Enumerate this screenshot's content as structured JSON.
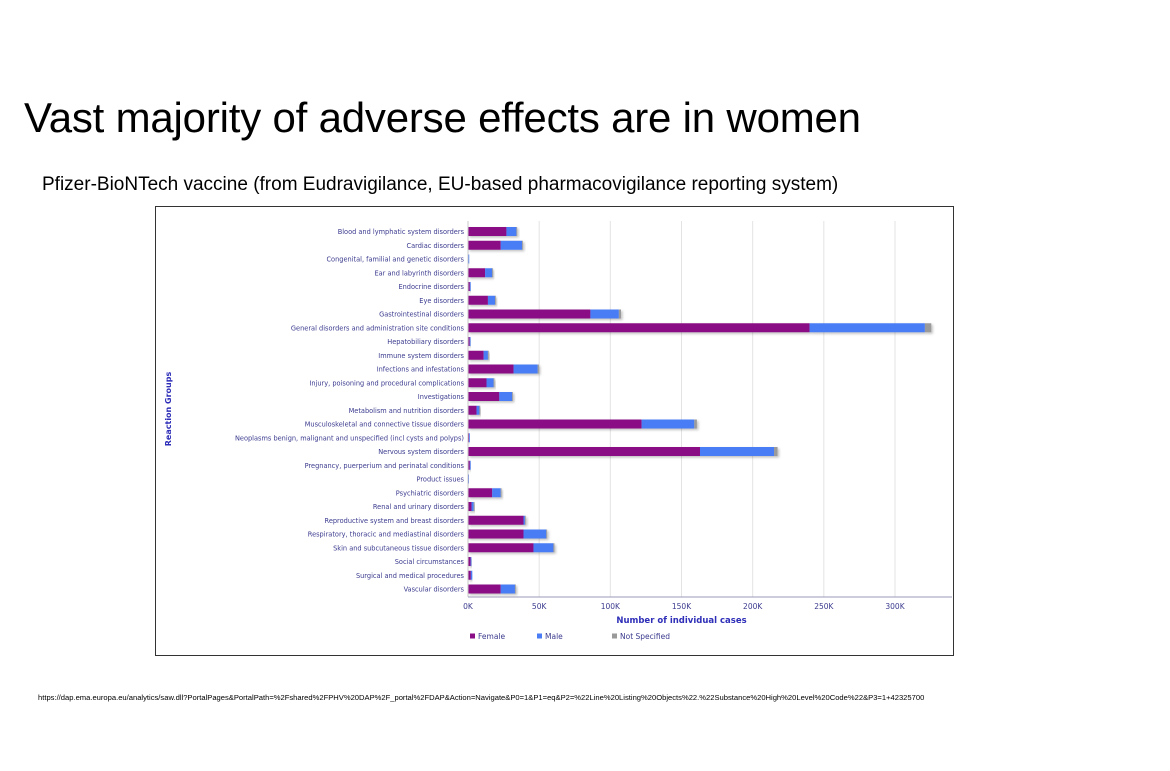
{
  "slide": {
    "title": "Vast majority of adverse effects are in women",
    "subtitle": "Pfizer-BioNTech vaccine (from Eudravigilance, EU-based pharmacovigilance reporting system)",
    "source_url": "https://dap.ema.europa.eu/analytics/saw.dll?PortalPages&PortalPath=%2Fshared%2FPHV%20DAP%2F_portal%2FDAP&Action=Navigate&P0=1&P1=eq&P2=%22Line%20Listing%20Objects%22.%22Substance%20High%20Level%20Code%22&P3=1+42325700"
  },
  "colors": {
    "female": "#8a0e86",
    "male": "#4a7df5",
    "not_specified": "#9a9a9a",
    "label_text": "#3b3b8f",
    "axis_title": "#2e2eb8",
    "grid": "#e3e3e3"
  },
  "chart_data": {
    "type": "bar",
    "orientation": "horizontal",
    "stacked": true,
    "title": "",
    "xlabel": "Number of individual cases",
    "ylabel": "Reaction Groups",
    "xlim": [
      0,
      330000
    ],
    "xticks": [
      0,
      50000,
      100000,
      150000,
      200000,
      250000,
      300000
    ],
    "xtick_labels": [
      "0K",
      "50K",
      "100K",
      "150K",
      "200K",
      "250K",
      "300K"
    ],
    "grid": true,
    "legend_position": "bottom-left",
    "categories": [
      "Blood and lymphatic system disorders",
      "Cardiac disorders",
      "Congenital, familial and genetic disorders",
      "Ear and labyrinth disorders",
      "Endocrine disorders",
      "Eye disorders",
      "Gastrointestinal disorders",
      "General disorders and administration site conditions",
      "Hepatobiliary disorders",
      "Immune system disorders",
      "Infections and infestations",
      "Injury, poisoning and procedural complications",
      "Investigations",
      "Metabolism and nutrition disorders",
      "Musculoskeletal and connective tissue disorders",
      "Neoplasms benign, malignant and unspecified (incl cysts and polyps)",
      "Nervous system disorders",
      "Pregnancy, puerperium and perinatal conditions",
      "Product issues",
      "Psychiatric disorders",
      "Renal and urinary disorders",
      "Reproductive system and breast disorders",
      "Respiratory, thoracic and mediastinal disorders",
      "Skin and subcutaneous tissue disorders",
      "Social circumstances",
      "Surgical and medical procedures",
      "Vascular disorders"
    ],
    "series": [
      {
        "name": "Female",
        "values": [
          27000,
          23000,
          300,
          12000,
          1300,
          14000,
          86000,
          240000,
          1200,
          11000,
          32000,
          13000,
          22000,
          6000,
          122000,
          700,
          163000,
          1300,
          100,
          17000,
          2500,
          39000,
          39000,
          46000,
          1800,
          2000,
          23000
        ]
      },
      {
        "name": "Male",
        "values": [
          7000,
          15000,
          100,
          5000,
          300,
          5000,
          20000,
          81000,
          400,
          3000,
          17000,
          5000,
          9000,
          2000,
          37000,
          200,
          52000,
          100,
          50,
          6000,
          1500,
          1000,
          16000,
          14000,
          300,
          1000,
          10000
        ]
      },
      {
        "name": "Not Specified",
        "values": [
          500,
          500,
          0,
          200,
          0,
          200,
          1500,
          4500,
          0,
          200,
          800,
          300,
          400,
          100,
          1800,
          0,
          2500,
          0,
          0,
          300,
          100,
          500,
          600,
          700,
          0,
          0,
          400
        ]
      }
    ]
  }
}
